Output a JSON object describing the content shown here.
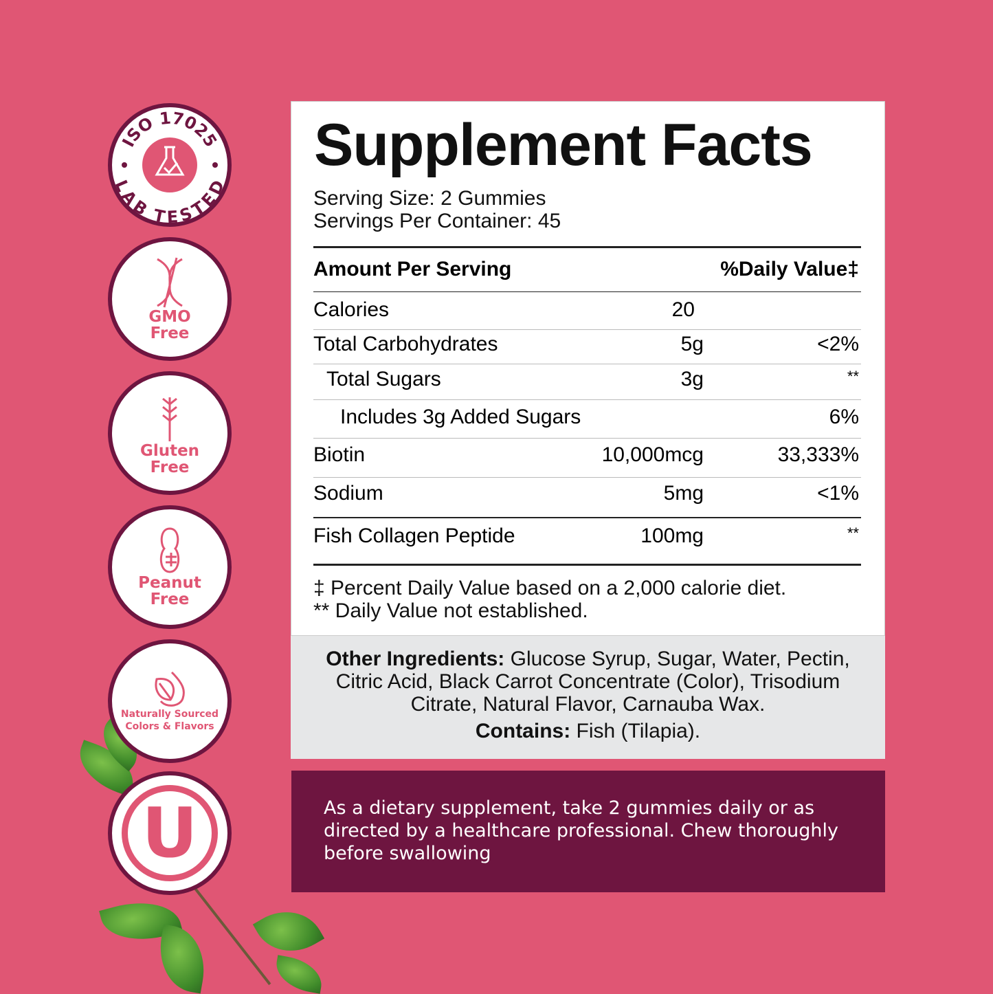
{
  "badges": [
    {
      "icon": "flask-check-icon",
      "top": "ISO 17025",
      "bottom": "LAB TESTED"
    },
    {
      "icon": "dna-icon",
      "line1": "GMO",
      "line2": "Free"
    },
    {
      "icon": "wheat-icon",
      "line1": "Gluten",
      "line2": "Free"
    },
    {
      "icon": "peanut-icon",
      "line1": "Peanut",
      "line2": "Free"
    },
    {
      "icon": "leaf-drop-icon",
      "line1": "Naturally Sourced",
      "line2": "Colors & Flavors"
    },
    {
      "icon": "kosher-u-icon",
      "mark": "U"
    }
  ],
  "facts": {
    "title": "Supplement Facts",
    "serving_size": "Serving Size: 2 Gummies",
    "servings_per_container": "Servings Per Container: 45",
    "header_amount": "Amount Per Serving",
    "header_dv": "%Daily Value‡",
    "rows": [
      {
        "name": "Calories",
        "amount": "20",
        "dv": ""
      },
      {
        "name": "Total Carbohydrates",
        "amount": "5g",
        "dv": "<2%"
      },
      {
        "name": "Total Sugars",
        "amount": "3g",
        "dv": "**"
      },
      {
        "name": "Includes 3g Added Sugars",
        "amount": "",
        "dv": "6%"
      },
      {
        "name": "Biotin",
        "amount": "10,000mcg",
        "dv": "33,333%"
      },
      {
        "name": "Sodium",
        "amount": "5mg",
        "dv": "<1%"
      },
      {
        "name": "Fish Collagen Peptide",
        "amount": "100mg",
        "dv": "**"
      }
    ],
    "footnote1": "‡ Percent Daily Value based on a 2,000 calorie diet.",
    "footnote2": "** Daily Value not established."
  },
  "ingredients": {
    "label": "Other Ingredients:",
    "text": " Glucose Syrup, Sugar, Water, Pectin, Citric Acid, Black Carrot Concentrate (Color), Trisodium Citrate, Natural Flavor, Carnauba Wax.",
    "contains_label": "Contains:",
    "contains_text": " Fish (Tilapia)."
  },
  "directions": "As a dietary supplement, take 2 gummies daily or as directed by a healthcare professional. Chew thoroughly before swallowing",
  "colors": {
    "background": "#e05674",
    "accent_dark": "#6e1540",
    "panel_grey": "#e6e7e8"
  }
}
